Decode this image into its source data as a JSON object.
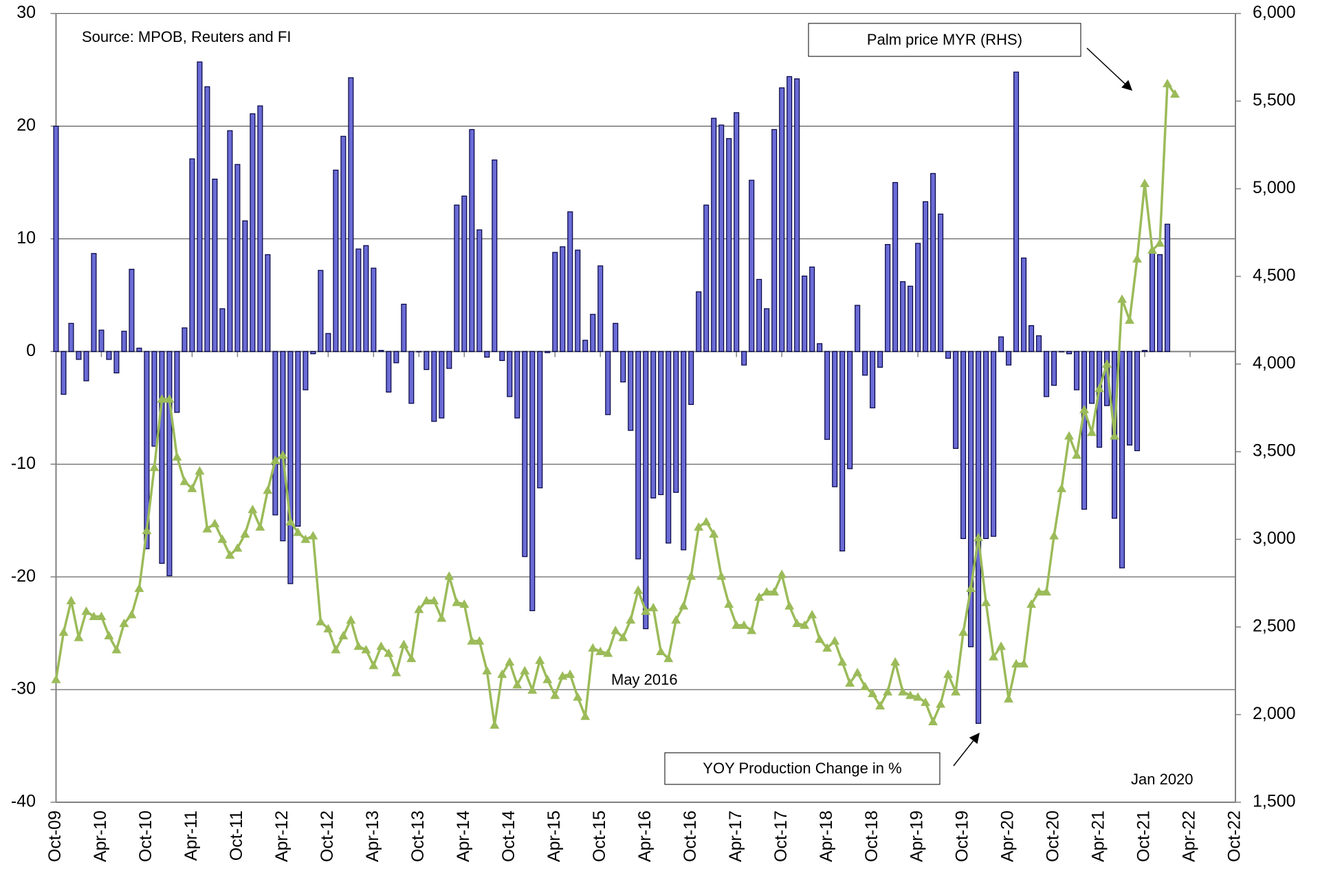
{
  "chart_data": {
    "type": "bar-line",
    "annotations": [
      "Source: MPOB, Reuters and FI",
      "May 2016",
      "Jan 2020"
    ],
    "categories": [
      "Oct-09",
      null,
      null,
      null,
      null,
      null,
      "Apr-10",
      null,
      null,
      null,
      null,
      null,
      "Oct-10",
      null,
      null,
      null,
      null,
      null,
      "Apr-11",
      null,
      null,
      null,
      null,
      null,
      "Oct-11",
      null,
      null,
      null,
      null,
      null,
      "Apr-12",
      null,
      null,
      null,
      null,
      null,
      "Oct-12",
      null,
      null,
      null,
      null,
      null,
      "Apr-13",
      null,
      null,
      null,
      null,
      null,
      "Oct-13",
      null,
      null,
      null,
      null,
      null,
      "Apr-14",
      null,
      null,
      null,
      null,
      null,
      "Oct-14",
      null,
      null,
      null,
      null,
      null,
      "Apr-15",
      null,
      null,
      null,
      null,
      null,
      "Oct-15",
      null,
      null,
      null,
      null,
      null,
      "Apr-16",
      null,
      null,
      null,
      null,
      null,
      "Oct-16",
      null,
      null,
      null,
      null,
      null,
      "Apr-17",
      null,
      null,
      null,
      null,
      null,
      "Oct-17",
      null,
      null,
      null,
      null,
      null,
      "Apr-18",
      null,
      null,
      null,
      null,
      null,
      "Oct-18",
      null,
      null,
      null,
      null,
      null,
      "Apr-19",
      null,
      null,
      null,
      null,
      null,
      "Oct-19",
      null,
      null,
      null,
      null,
      null,
      "Apr-20",
      null,
      null,
      null,
      null,
      null,
      "Oct-20",
      null,
      null,
      null,
      null,
      null,
      "Apr-21",
      null,
      null,
      null,
      null,
      null,
      "Oct-21",
      null,
      null,
      null,
      null,
      null,
      "Apr-22",
      null,
      null,
      null,
      null,
      null,
      "Oct-22"
    ],
    "series": [
      {
        "name": "YOY Production Change in %",
        "type": "bar",
        "color": "#6b6bd6",
        "axis": "y",
        "values": [
          20,
          -3.8,
          2.5,
          -0.7,
          -2.6,
          8.7,
          1.9,
          -0.7,
          -1.9,
          1.8,
          7.3,
          0.3,
          -17.5,
          -8.4,
          -18.8,
          -19.9,
          -5.4,
          2.1,
          17.1,
          25.7,
          23.5,
          15.3,
          3.8,
          19.6,
          16.6,
          11.6,
          21.1,
          21.8,
          8.6,
          -14.5,
          -16.8,
          -20.6,
          -15.5,
          -3.4,
          -0.2,
          7.2,
          1.6,
          16.1,
          19.1,
          24.3,
          9.1,
          9.4,
          7.4,
          0.1,
          -3.6,
          -1.0,
          4.2,
          -4.6,
          0,
          -1.6,
          -6.2,
          -5.9,
          -1.5,
          13.0,
          13.8,
          19.7,
          10.8,
          -0.5,
          17.0,
          -0.8,
          -4.0,
          -5.9,
          -18.2,
          -23.0,
          -12.1,
          -0.1,
          8.8,
          9.3,
          12.4,
          9.0,
          1.0,
          3.3,
          7.6,
          -5.6,
          2.5,
          -2.7,
          -7.0,
          -18.4,
          -24.6,
          -13.0,
          -12.7,
          -17.0,
          -12.5,
          -17.6,
          -4.7,
          5.3,
          13.0,
          20.7,
          20.1,
          18.9,
          21.2,
          -1.2,
          15.2,
          6.4,
          3.8,
          19.7,
          23.4,
          24.4,
          24.2,
          6.7,
          7.5,
          0.7,
          -7.8,
          -12.0,
          -17.7,
          -10.4,
          4.1,
          -2.1,
          -5.0,
          -1.4,
          9.5,
          15.0,
          6.2,
          5.8,
          9.6,
          13.3,
          15.8,
          12.2,
          -0.6,
          -8.6,
          -16.6,
          -26.2,
          -33.0,
          -16.6,
          -16.4,
          1.3,
          -1.2,
          24.8,
          8.3,
          2.3,
          1.4,
          -4.0,
          -3.0,
          0,
          -0.2,
          -3.4,
          -14.0,
          -4.6,
          -8.5,
          -4.8,
          -14.8,
          -19.2,
          -8.3,
          -8.8,
          0.1,
          9.0,
          8.6,
          11.3,
          null,
          null,
          null,
          null,
          null,
          null,
          null,
          null,
          null
        ]
      },
      {
        "name": "Palm price MYR (RHS)",
        "type": "line",
        "color": "#9bbb59",
        "axis": "y2",
        "values": [
          2200,
          2470,
          2650,
          2440,
          2590,
          2560,
          2560,
          2450,
          2370,
          2520,
          2570,
          2720,
          3050,
          3410,
          3800,
          3800,
          3470,
          3330,
          3290,
          3390,
          3060,
          3090,
          3000,
          2910,
          2950,
          3030,
          3170,
          3070,
          3280,
          3450,
          3480,
          3100,
          3040,
          3000,
          3020,
          2530,
          2490,
          2370,
          2450,
          2540,
          2390,
          2370,
          2280,
          2390,
          2350,
          2240,
          2400,
          2320,
          2600,
          2650,
          2650,
          2550,
          2790,
          2640,
          2630,
          2420,
          2420,
          2250,
          1940,
          2230,
          2300,
          2170,
          2250,
          2140,
          2310,
          2200,
          2110,
          2220,
          2230,
          2100,
          1990,
          2380,
          2360,
          2350,
          2480,
          2440,
          2540,
          2710,
          2590,
          2610,
          2360,
          2320,
          2540,
          2620,
          2790,
          3070,
          3100,
          3030,
          2790,
          2630,
          2510,
          2510,
          2480,
          2670,
          2700,
          2700,
          2800,
          2620,
          2520,
          2510,
          2570,
          2430,
          2380,
          2420,
          2300,
          2180,
          2240,
          2160,
          2120,
          2050,
          2130,
          2300,
          2130,
          2110,
          2100,
          2070,
          1960,
          2060,
          2230,
          2130,
          2470,
          2720,
          3010,
          2640,
          2330,
          2390,
          2090,
          2290,
          2290,
          2630,
          2700,
          2700,
          3020,
          3290,
          3590,
          3480,
          3740,
          3610,
          3860,
          4000,
          3590,
          4370,
          4250,
          4600,
          5030,
          4650,
          4690,
          5600,
          5540,
          null,
          null,
          null,
          null,
          null,
          null,
          null,
          null
        ]
      }
    ],
    "ylim": [
      -40,
      30
    ],
    "yticks": [
      30,
      20,
      10,
      0,
      -10,
      -20,
      -30,
      -40
    ],
    "y2lim": [
      1500,
      6000
    ],
    "y2ticks": [
      {
        "value": 6000,
        "label": "6,000"
      },
      {
        "value": 5500,
        "label": "5,500"
      },
      {
        "value": 5000,
        "label": "5,000"
      },
      {
        "value": 4500,
        "label": "4,500"
      },
      {
        "value": 4000,
        "label": "4,000"
      },
      {
        "value": 3500,
        "label": "3,500"
      },
      {
        "value": 3000,
        "label": "3,000"
      },
      {
        "value": 2500,
        "label": "2,500"
      },
      {
        "value": 2000,
        "label": "2,000"
      },
      {
        "value": 1500,
        "label": "1,500"
      }
    ],
    "grid": true
  }
}
